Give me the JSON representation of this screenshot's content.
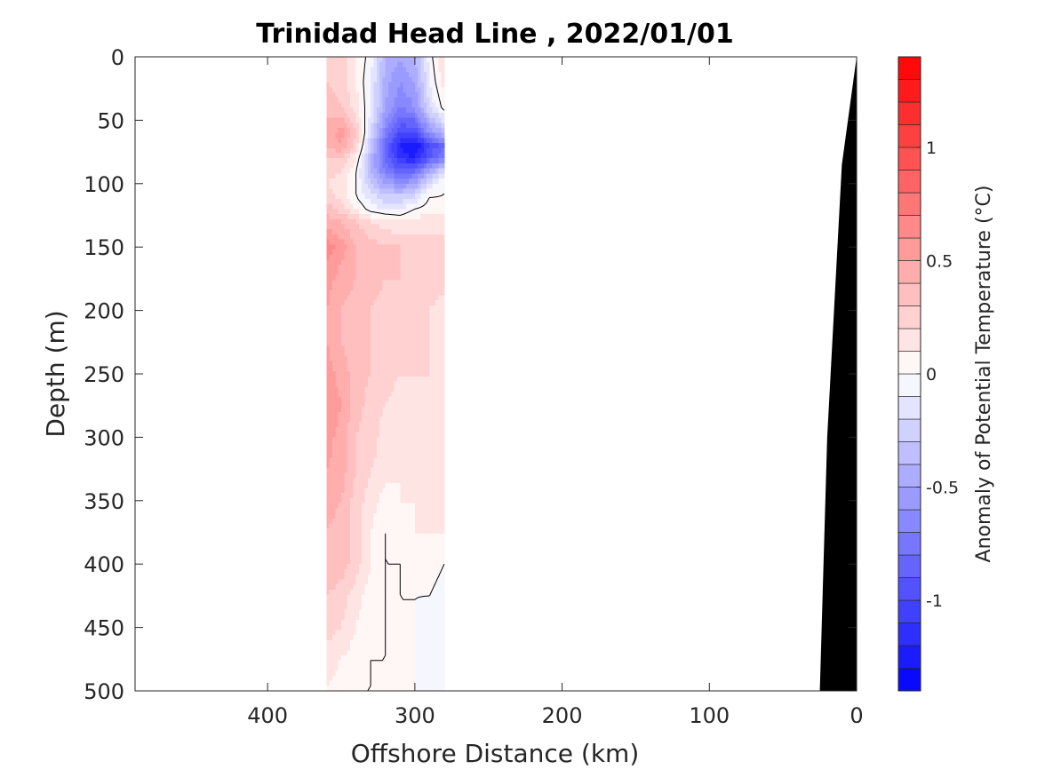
{
  "chart_data": {
    "type": "heatmap",
    "subtype": "filled-contour section",
    "title": "Trinidad Head Line , 2022/01/01",
    "xlabel": "Offshore Distance (km)",
    "ylabel": "Depth (m)",
    "xlim": [
      490,
      0
    ],
    "x_reversed": true,
    "ylim": [
      0,
      500
    ],
    "y_reversed": true,
    "xticks": [
      400,
      300,
      200,
      100,
      0
    ],
    "xtick_labels": [
      "400",
      "300",
      "200",
      "100",
      "0"
    ],
    "yticks": [
      0,
      50,
      100,
      150,
      200,
      250,
      300,
      350,
      400,
      450,
      500
    ],
    "ytick_labels": [
      "0",
      "50",
      "100",
      "150",
      "200",
      "250",
      "300",
      "350",
      "400",
      "450",
      "500"
    ],
    "data_extent_x": [
      360,
      280
    ],
    "colorbar": {
      "label": "Anomaly of Potential Temperature (°C)",
      "range": [
        -1.4,
        1.4
      ],
      "levels": 28,
      "ticks": [
        1,
        0.5,
        0,
        -0.5,
        -1
      ],
      "tick_labels": [
        "1",
        "0.5",
        "0",
        "-0.5",
        "-1"
      ],
      "colormap": "blue-white-red",
      "low_color": "#0000ff",
      "high_color": "#ff0000"
    },
    "grid": false,
    "field_x": [
      360,
      350,
      340,
      330,
      320,
      310,
      300,
      290,
      280
    ],
    "field_y": [
      0,
      20,
      40,
      60,
      70,
      80,
      90,
      100,
      110,
      120,
      130,
      150,
      175,
      200,
      225,
      250,
      275,
      300,
      325,
      350,
      375,
      400,
      425,
      450,
      475,
      500
    ],
    "field_values": [
      [
        0.3,
        0.25,
        0.1,
        -0.05,
        -0.4,
        -0.5,
        -0.4,
        -0.05,
        0.2
      ],
      [
        0.3,
        0.25,
        0.1,
        -0.1,
        -0.45,
        -0.6,
        -0.5,
        -0.1,
        0.15
      ],
      [
        0.35,
        0.3,
        0.15,
        -0.1,
        -0.5,
        -0.7,
        -0.6,
        -0.2,
        0.05
      ],
      [
        0.45,
        0.55,
        0.3,
        -0.2,
        -0.7,
        -1.0,
        -1.0,
        -0.6,
        -0.4
      ],
      [
        0.4,
        0.5,
        0.25,
        -0.3,
        -0.85,
        -1.2,
        -1.3,
        -1.0,
        -0.8
      ],
      [
        0.3,
        0.3,
        0.1,
        -0.4,
        -0.8,
        -1.15,
        -1.2,
        -0.9,
        -0.7
      ],
      [
        0.25,
        0.2,
        0.0,
        -0.4,
        -0.7,
        -0.85,
        -0.8,
        -0.5,
        -0.2
      ],
      [
        0.2,
        0.15,
        0.0,
        -0.3,
        -0.5,
        -0.6,
        -0.5,
        -0.15,
        0.0
      ],
      [
        0.25,
        0.15,
        0.0,
        -0.15,
        -0.3,
        -0.3,
        -0.2,
        0.0,
        0.0
      ],
      [
        0.35,
        0.25,
        0.1,
        -0.05,
        -0.1,
        -0.1,
        0.0,
        0.05,
        0.05
      ],
      [
        0.45,
        0.4,
        0.3,
        0.2,
        0.15,
        0.1,
        0.15,
        0.15,
        0.15
      ],
      [
        0.65,
        0.55,
        0.4,
        0.35,
        0.3,
        0.3,
        0.25,
        0.25,
        0.25
      ],
      [
        0.55,
        0.45,
        0.4,
        0.35,
        0.3,
        0.3,
        0.25,
        0.25,
        0.25
      ],
      [
        0.5,
        0.4,
        0.35,
        0.3,
        0.25,
        0.25,
        0.2,
        0.2,
        0.15
      ],
      [
        0.5,
        0.4,
        0.35,
        0.3,
        0.25,
        0.2,
        0.2,
        0.2,
        0.15
      ],
      [
        0.55,
        0.45,
        0.35,
        0.3,
        0.25,
        0.2,
        0.2,
        0.2,
        0.15
      ],
      [
        0.6,
        0.5,
        0.35,
        0.25,
        0.2,
        0.15,
        0.15,
        0.15,
        0.1
      ],
      [
        0.55,
        0.45,
        0.3,
        0.25,
        0.15,
        0.15,
        0.1,
        0.15,
        0.1
      ],
      [
        0.5,
        0.45,
        0.3,
        0.2,
        0.15,
        0.1,
        0.1,
        0.1,
        0.1
      ],
      [
        0.45,
        0.4,
        0.25,
        0.15,
        0.05,
        0.1,
        0.1,
        0.1,
        0.1
      ],
      [
        0.4,
        0.35,
        0.25,
        0.1,
        0.0,
        0.05,
        0.1,
        0.1,
        0.1
      ],
      [
        0.4,
        0.35,
        0.25,
        0.1,
        0.0,
        0.0,
        0.05,
        0.05,
        0.0
      ],
      [
        0.3,
        0.25,
        0.15,
        0.05,
        0.0,
        0.0,
        0.0,
        0.0,
        -0.05
      ],
      [
        0.25,
        0.2,
        0.1,
        0.02,
        0.0,
        0.0,
        0.0,
        -0.05,
        -0.1
      ],
      [
        0.15,
        0.1,
        0.05,
        0.0,
        0.0,
        0.0,
        0.0,
        -0.05,
        -0.1
      ],
      [
        0.1,
        0.05,
        0.0,
        0.0,
        0.0,
        0.0,
        0.0,
        -0.05,
        -0.1
      ]
    ],
    "zero_contour_color": "#000000",
    "bathymetry": {
      "fill": "#000000",
      "profile_x": [
        0,
        10,
        20,
        25
      ],
      "profile_depth": [
        0,
        85,
        300,
        500
      ]
    }
  }
}
